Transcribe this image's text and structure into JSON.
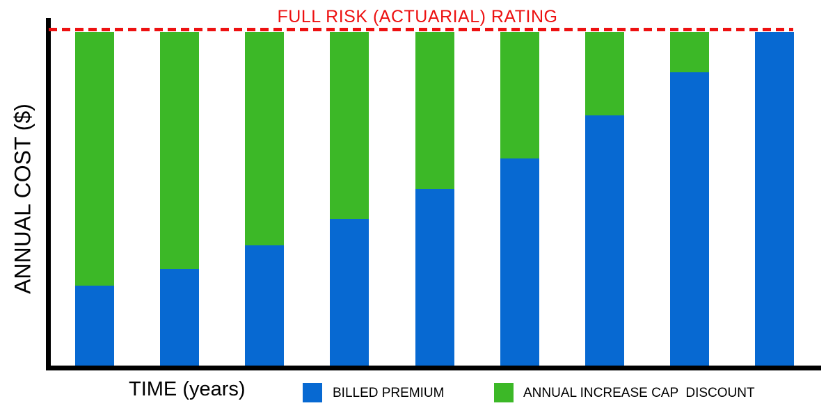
{
  "chart_data": {
    "type": "bar",
    "stacked": true,
    "xlabel": "TIME (years)",
    "ylabel": "ANNUAL COST ($)",
    "x_tick_labels_visible": false,
    "y_tick_labels_visible": false,
    "ylim": [
      0,
      100
    ],
    "values_unit": "percent of full actuarial rating (estimated from bar heights)",
    "annotation_line": {
      "label": "FULL RISK (ACTUARIAL) RATING",
      "value": 100,
      "style": "dashed",
      "color": "#ED1111"
    },
    "series": [
      {
        "name": "BILLED PREMIUM",
        "color": "#0769D2",
        "values": [
          24,
          29,
          36,
          44,
          53,
          62,
          75,
          88,
          100
        ]
      },
      {
        "name": "ANNUAL INCREASE CAP  DISCOUNT",
        "color": "#3CB827",
        "values": [
          76,
          71,
          64,
          56,
          47,
          38,
          25,
          12,
          0
        ]
      }
    ],
    "legend": {
      "position": "bottom",
      "entries": [
        "BILLED PREMIUM",
        "ANNUAL INCREASE CAP  DISCOUNT"
      ]
    },
    "axis_color": "#000000",
    "background": "#FFFFFF"
  }
}
